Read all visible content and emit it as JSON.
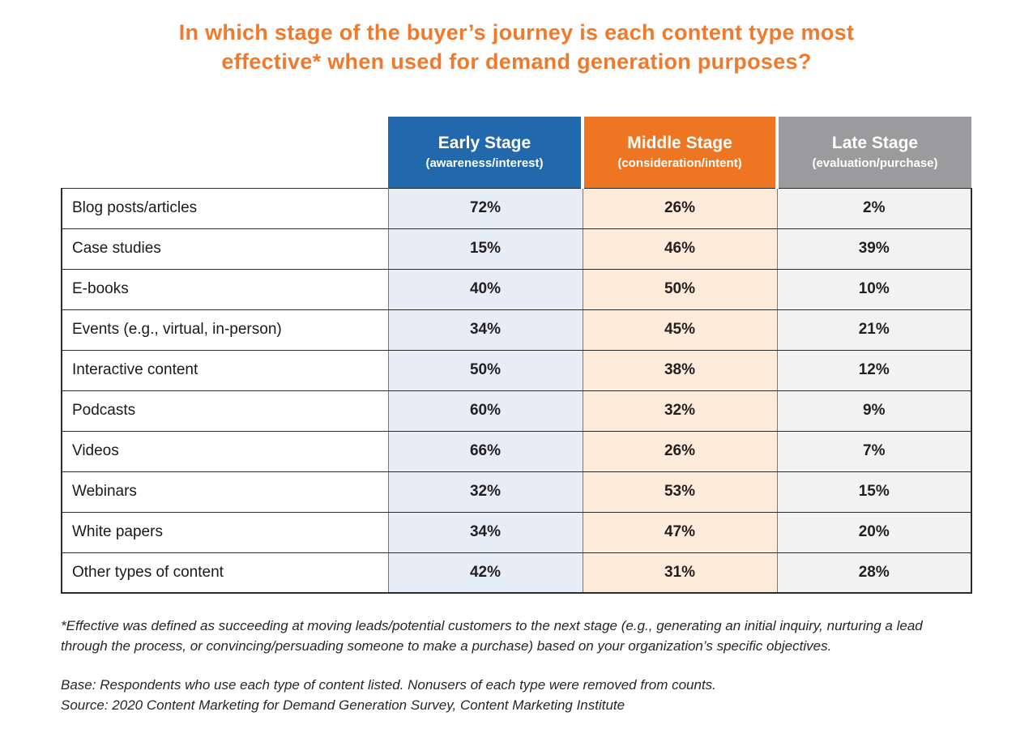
{
  "title": {
    "line1": "In which stage of the buyer’s journey is each content type most",
    "line2": "effective* when used for demand generation purposes?"
  },
  "colors": {
    "accent_orange": "#F0792B",
    "header_blue": "#2268AD",
    "header_orange": "#EE7623",
    "header_gray": "#9B9B9D",
    "cell_blue_tint": "#E7EDF6",
    "cell_orange_tint": "#FDEBDA",
    "cell_gray_tint": "#F2F2F3"
  },
  "table": {
    "columns": [
      {
        "label": "Early Stage",
        "sublabel": "(awareness/interest)"
      },
      {
        "label": "Middle Stage",
        "sublabel": "(consideration/intent)"
      },
      {
        "label": "Late Stage",
        "sublabel": "(evaluation/purchase)"
      }
    ],
    "rows": [
      {
        "label": "Blog posts/articles",
        "values": [
          "72%",
          "26%",
          "2%"
        ]
      },
      {
        "label": "Case studies",
        "values": [
          "15%",
          "46%",
          "39%"
        ]
      },
      {
        "label": "E-books",
        "values": [
          "40%",
          "50%",
          "10%"
        ]
      },
      {
        "label": "Events (e.g., virtual, in-person)",
        "values": [
          "34%",
          "45%",
          "21%"
        ]
      },
      {
        "label": "Interactive content",
        "values": [
          "50%",
          "38%",
          "12%"
        ]
      },
      {
        "label": "Podcasts",
        "values": [
          "60%",
          "32%",
          "9%"
        ]
      },
      {
        "label": "Videos",
        "values": [
          "66%",
          "26%",
          "7%"
        ]
      },
      {
        "label": "Webinars",
        "values": [
          "32%",
          "53%",
          "15%"
        ]
      },
      {
        "label": "White papers",
        "values": [
          "34%",
          "47%",
          "20%"
        ]
      },
      {
        "label": "Other types of content",
        "values": [
          "42%",
          "31%",
          "28%"
        ]
      }
    ]
  },
  "footnotes": {
    "effective_note": "*Effective was defined as succeeding at moving leads/potential customers to the next stage (e.g., generating an initial inquiry, nurturing a lead through the process, or convincing/persuading someone to make a purchase) based on your organization’s specific objectives.",
    "base_note": "Base: Respondents who use each type of content listed. Nonusers of each type were removed from counts.",
    "source_note": "Source: 2020 Content Marketing for Demand Generation Survey, Content Marketing Institute"
  },
  "chart_data": {
    "type": "table",
    "title": "In which stage of the buyer’s journey is each content type most effective* when used for demand generation purposes?",
    "categories": [
      "Blog posts/articles",
      "Case studies",
      "E-books",
      "Events (e.g., virtual, in-person)",
      "Interactive content",
      "Podcasts",
      "Videos",
      "Webinars",
      "White papers",
      "Other types of content"
    ],
    "series": [
      {
        "name": "Early Stage (awareness/interest)",
        "values": [
          72,
          15,
          40,
          34,
          50,
          60,
          66,
          32,
          34,
          42
        ]
      },
      {
        "name": "Middle Stage (consideration/intent)",
        "values": [
          26,
          46,
          50,
          45,
          38,
          32,
          26,
          53,
          47,
          31
        ]
      },
      {
        "name": "Late Stage (evaluation/purchase)",
        "values": [
          2,
          39,
          10,
          21,
          12,
          9,
          7,
          15,
          20,
          28
        ]
      }
    ],
    "unit": "%"
  }
}
